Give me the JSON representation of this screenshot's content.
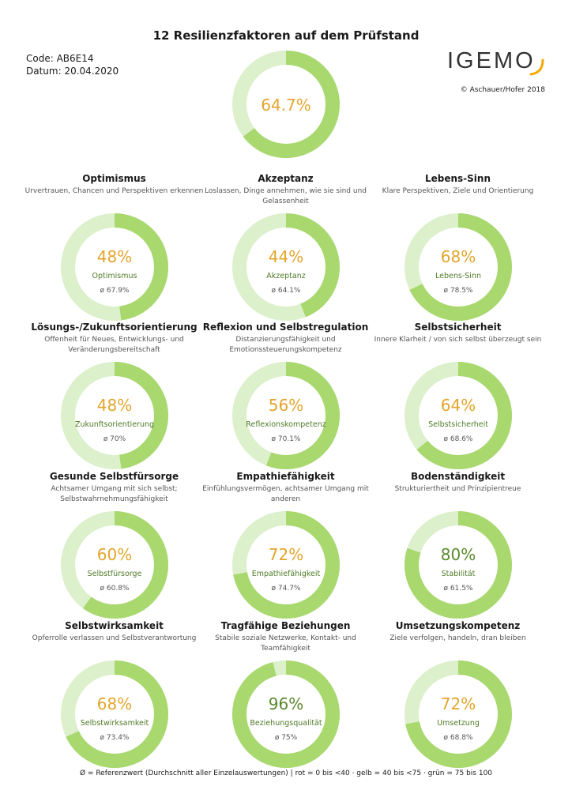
{
  "header": {
    "title": "12 Resilienzfaktoren auf dem Prüfstand",
    "code": "Code: AB6E14",
    "date": "Datum: 20.04.2020",
    "logo_text": "IGEMO",
    "copyright": "© Aschauer/Hofer 2018"
  },
  "colors": {
    "ring_filled": "#a8d86e",
    "ring_empty": "#dcf0cc",
    "pct_yellow": "#e3a52c",
    "pct_green": "#5a8a2e",
    "label_green": "#4f7a27",
    "avg_gray": "#555555",
    "logo_gray": "#333333",
    "logo_accent": "#f2a900"
  },
  "footer": "Ø = Referenzwert (Durchschnitt aller Einzelauswertungen) | rot = 0 bis <40 · gelb = 40 bis <75 · grün = 75 bis 100",
  "chart_data": {
    "type": "donut",
    "overall": {
      "value": 64.7,
      "label": "64.7%",
      "color_class": "yellow"
    },
    "factors": [
      {
        "title": "Optimismus",
        "desc": "Urvertrauen, Chancen und Perspektiven erkennen",
        "value": 48,
        "label": "48%",
        "short": "Optimismus",
        "avg": "ø 67.9%",
        "color_class": "yellow"
      },
      {
        "title": "Akzeptanz",
        "desc": "Loslassen, Dinge annehmen, wie sie sind und Gelassenheit",
        "value": 44,
        "label": "44%",
        "short": "Akzeptanz",
        "avg": "ø 64.1%",
        "color_class": "yellow"
      },
      {
        "title": "Lebens-Sinn",
        "desc": "Klare Perspektiven, Ziele und Orientierung",
        "value": 68,
        "label": "68%",
        "short": "Lebens-Sinn",
        "avg": "ø 78.5%",
        "color_class": "yellow"
      },
      {
        "title": "Lösungs-/Zukunftsorientierung",
        "desc": "Offenheit für Neues, Entwicklungs- und Veränderungsbereitschaft",
        "value": 48,
        "label": "48%",
        "short": "Zukunftsorientierung",
        "avg": "ø 70%",
        "color_class": "yellow"
      },
      {
        "title": "Reflexion und Selbstregulation",
        "desc": "Distanzierungsfähigkeit und Emotionssteuerungskompetenz",
        "value": 56,
        "label": "56%",
        "short": "Reflexionskompetenz",
        "avg": "ø 70.1%",
        "color_class": "yellow"
      },
      {
        "title": "Selbstsicherheit",
        "desc": "Innere Klarheit / von sich selbst überzeugt sein",
        "value": 64,
        "label": "64%",
        "short": "Selbstsicherheit",
        "avg": "ø 68.6%",
        "color_class": "yellow"
      },
      {
        "title": "Gesunde Selbstfürsorge",
        "desc": "Achtsamer Umgang mit sich selbst; Selbstwahrnehmungsfähigkeit",
        "value": 60,
        "label": "60%",
        "short": "Selbstfürsorge",
        "avg": "ø 60.8%",
        "color_class": "yellow"
      },
      {
        "title": "Empathiefähigkeit",
        "desc": "Einfühlungsvermögen, achtsamer Umgang mit anderen",
        "value": 72,
        "label": "72%",
        "short": "Empathiefähigkeit",
        "avg": "ø 74.7%",
        "color_class": "yellow"
      },
      {
        "title": "Bodenständigkeit",
        "desc": "Strukturiertheit und Prinzipientreue",
        "value": 80,
        "label": "80%",
        "short": "Stabilität",
        "avg": "ø 61.5%",
        "color_class": "green"
      },
      {
        "title": "Selbstwirksamkeit",
        "desc": "Opferrolle verlassen und Selbstverantwortung",
        "value": 68,
        "label": "68%",
        "short": "Selbstwirksamkeit",
        "avg": "ø 73.4%",
        "color_class": "yellow"
      },
      {
        "title": "Tragfähige Beziehungen",
        "desc": "Stabile soziale Netzwerke, Kontakt- und Teamfähigkeit",
        "value": 96,
        "label": "96%",
        "short": "Beziehungsqualität",
        "avg": "ø 75%",
        "color_class": "green"
      },
      {
        "title": "Umsetzungskompetenz",
        "desc": "Ziele verfolgen, handeln, dran bleiben",
        "value": 72,
        "label": "72%",
        "short": "Umsetzung",
        "avg": "ø 68.8%",
        "color_class": "yellow"
      }
    ]
  }
}
